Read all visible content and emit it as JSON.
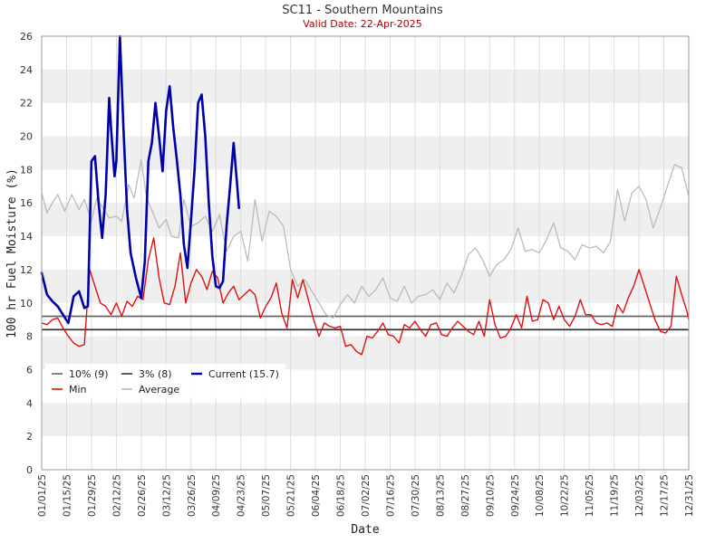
{
  "chart_data": {
    "type": "line",
    "title": "SC11 - Southern Mountains",
    "subtitle": "Valid Date: 22-Apr-2025",
    "xlabel": "Date",
    "ylabel": "100 hr Fuel Moisture (%)",
    "ylim": [
      0,
      26
    ],
    "yticks": [
      0,
      2,
      4,
      6,
      8,
      10,
      12,
      14,
      16,
      18,
      20,
      22,
      24,
      26
    ],
    "xlim": [
      "2025-01-01",
      "2025-12-31"
    ],
    "xtick_labels": [
      "01/01/25",
      "01/15/25",
      "01/29/25",
      "02/12/25",
      "02/26/25",
      "03/12/25",
      "03/26/25",
      "04/09/25",
      "04/23/25",
      "05/07/25",
      "05/21/25",
      "06/04/25",
      "06/18/25",
      "07/02/25",
      "07/16/25",
      "07/30/25",
      "08/13/25",
      "08/27/25",
      "09/10/25",
      "09/24/25",
      "10/08/25",
      "10/22/25",
      "11/05/25",
      "11/19/25",
      "12/03/25",
      "12/17/25",
      "12/31/25"
    ],
    "grid": true,
    "legend_position": "bottom-left",
    "colors": {
      "p10": "#666666",
      "p3": "#333333",
      "current": "#0000aa",
      "min": "#dd1111",
      "average": "#bbbbbb",
      "band": "#efefef",
      "grid": "#dddddd"
    },
    "thresholds": [
      {
        "name": "10% (9)",
        "value": 9.2
      },
      {
        "name": "3% (8)",
        "value": 8.4
      }
    ],
    "legend": [
      {
        "key": "p10",
        "label": "10% (9)"
      },
      {
        "key": "p3",
        "label": "3% (8)"
      },
      {
        "key": "current",
        "label": "Current (15.7)"
      },
      {
        "key": "min",
        "label": "Min"
      },
      {
        "key": "average",
        "label": "Average"
      }
    ],
    "series": [
      {
        "name": "Average",
        "key": "average",
        "x": [
          "2025-01-01",
          "2025-01-04",
          "2025-01-07",
          "2025-01-10",
          "2025-01-14",
          "2025-01-18",
          "2025-01-22",
          "2025-01-25",
          "2025-01-29",
          "2025-02-01",
          "2025-02-05",
          "2025-02-08",
          "2025-02-12",
          "2025-02-15",
          "2025-02-19",
          "2025-02-22",
          "2025-02-26",
          "2025-03-01",
          "2025-03-05",
          "2025-03-08",
          "2025-03-12",
          "2025-03-15",
          "2025-03-19",
          "2025-03-22",
          "2025-03-26",
          "2025-03-30",
          "2025-04-03",
          "2025-04-07",
          "2025-04-11",
          "2025-04-15",
          "2025-04-19",
          "2025-04-23",
          "2025-04-27",
          "2025-05-01",
          "2025-05-05",
          "2025-05-09",
          "2025-05-13",
          "2025-05-17",
          "2025-05-21",
          "2025-05-25",
          "2025-05-29",
          "2025-06-02",
          "2025-06-06",
          "2025-06-10",
          "2025-06-14",
          "2025-06-18",
          "2025-06-22",
          "2025-06-26",
          "2025-06-30",
          "2025-07-04",
          "2025-07-08",
          "2025-07-12",
          "2025-07-16",
          "2025-07-20",
          "2025-07-24",
          "2025-07-28",
          "2025-08-01",
          "2025-08-05",
          "2025-08-09",
          "2025-08-13",
          "2025-08-17",
          "2025-08-21",
          "2025-08-25",
          "2025-08-29",
          "2025-09-02",
          "2025-09-06",
          "2025-09-10",
          "2025-09-14",
          "2025-09-18",
          "2025-09-22",
          "2025-09-26",
          "2025-09-30",
          "2025-10-04",
          "2025-10-08",
          "2025-10-12",
          "2025-10-16",
          "2025-10-20",
          "2025-10-24",
          "2025-10-28",
          "2025-11-01",
          "2025-11-05",
          "2025-11-09",
          "2025-11-13",
          "2025-11-17",
          "2025-11-21",
          "2025-11-25",
          "2025-11-29",
          "2025-12-03",
          "2025-12-07",
          "2025-12-11",
          "2025-12-15",
          "2025-12-19",
          "2025-12-23",
          "2025-12-27",
          "2025-12-31"
        ],
        "y": [
          16.6,
          15.4,
          16.0,
          16.5,
          15.5,
          16.5,
          15.6,
          16.2,
          14.9,
          16.3,
          15.6,
          15.1,
          15.2,
          14.9,
          17.1,
          16.3,
          18.6,
          16.3,
          15.3,
          14.5,
          15.0,
          14.0,
          13.9,
          16.2,
          14.6,
          14.8,
          15.2,
          14.3,
          15.3,
          13.1,
          14.0,
          14.3,
          12.5,
          16.2,
          13.7,
          15.5,
          15.2,
          14.6,
          12.0,
          11.0,
          11.4,
          10.7,
          10.0,
          9.3,
          9.1,
          9.9,
          10.5,
          10.0,
          11.0,
          10.4,
          10.8,
          11.5,
          10.3,
          10.1,
          11.0,
          10.0,
          10.4,
          10.5,
          10.8,
          10.2,
          11.2,
          10.6,
          11.6,
          12.9,
          13.3,
          12.6,
          11.6,
          12.3,
          12.6,
          13.2,
          14.5,
          13.1,
          13.2,
          13.0,
          13.8,
          14.8,
          13.3,
          13.1,
          12.6,
          13.5,
          13.3,
          13.4,
          13.0,
          13.7,
          16.8,
          14.9,
          16.6,
          17.0,
          16.2,
          14.5,
          15.7,
          17.0,
          18.3,
          18.1,
          16.4
        ]
      },
      {
        "name": "Min",
        "key": "min",
        "x": [
          "2025-01-01",
          "2025-01-04",
          "2025-01-07",
          "2025-01-10",
          "2025-01-13",
          "2025-01-16",
          "2025-01-19",
          "2025-01-22",
          "2025-01-25",
          "2025-01-28",
          "2025-01-31",
          "2025-02-03",
          "2025-02-06",
          "2025-02-09",
          "2025-02-12",
          "2025-02-15",
          "2025-02-18",
          "2025-02-21",
          "2025-02-24",
          "2025-02-27",
          "2025-03-02",
          "2025-03-05",
          "2025-03-08",
          "2025-03-11",
          "2025-03-14",
          "2025-03-17",
          "2025-03-20",
          "2025-03-23",
          "2025-03-26",
          "2025-03-29",
          "2025-04-01",
          "2025-04-04",
          "2025-04-07",
          "2025-04-10",
          "2025-04-13",
          "2025-04-16",
          "2025-04-19",
          "2025-04-22",
          "2025-04-25",
          "2025-04-28",
          "2025-05-01",
          "2025-05-04",
          "2025-05-07",
          "2025-05-10",
          "2025-05-13",
          "2025-05-16",
          "2025-05-19",
          "2025-05-22",
          "2025-05-25",
          "2025-05-28",
          "2025-05-31",
          "2025-06-03",
          "2025-06-06",
          "2025-06-09",
          "2025-06-12",
          "2025-06-15",
          "2025-06-18",
          "2025-06-21",
          "2025-06-24",
          "2025-06-27",
          "2025-06-30",
          "2025-07-03",
          "2025-07-06",
          "2025-07-09",
          "2025-07-12",
          "2025-07-15",
          "2025-07-18",
          "2025-07-21",
          "2025-07-24",
          "2025-07-27",
          "2025-07-30",
          "2025-08-02",
          "2025-08-05",
          "2025-08-08",
          "2025-08-11",
          "2025-08-14",
          "2025-08-17",
          "2025-08-20",
          "2025-08-23",
          "2025-08-26",
          "2025-08-29",
          "2025-09-01",
          "2025-09-04",
          "2025-09-07",
          "2025-09-10",
          "2025-09-13",
          "2025-09-16",
          "2025-09-19",
          "2025-09-22",
          "2025-09-25",
          "2025-09-28",
          "2025-10-01",
          "2025-10-04",
          "2025-10-07",
          "2025-10-10",
          "2025-10-13",
          "2025-10-16",
          "2025-10-19",
          "2025-10-22",
          "2025-10-25",
          "2025-10-28",
          "2025-10-31",
          "2025-11-03",
          "2025-11-06",
          "2025-11-09",
          "2025-11-12",
          "2025-11-15",
          "2025-11-18",
          "2025-11-21",
          "2025-11-24",
          "2025-11-27",
          "2025-11-30",
          "2025-12-03",
          "2025-12-06",
          "2025-12-09",
          "2025-12-12",
          "2025-12-15",
          "2025-12-18",
          "2025-12-21",
          "2025-12-24",
          "2025-12-27",
          "2025-12-30",
          "2025-12-31"
        ],
        "y": [
          8.8,
          8.7,
          9.0,
          9.1,
          8.5,
          8.0,
          7.6,
          7.4,
          7.5,
          12.0,
          11.0,
          10.0,
          9.8,
          9.3,
          10.0,
          9.2,
          10.1,
          9.8,
          10.4,
          10.2,
          12.6,
          13.9,
          11.5,
          10.0,
          9.9,
          11.0,
          13.0,
          10.0,
          11.2,
          12.0,
          11.6,
          10.8,
          11.9,
          11.5,
          10.0,
          10.6,
          11.0,
          10.2,
          10.5,
          10.8,
          10.5,
          9.1,
          9.8,
          10.3,
          11.2,
          9.4,
          8.5,
          11.4,
          10.3,
          11.4,
          10.2,
          9.0,
          8.0,
          8.8,
          8.6,
          8.5,
          8.6,
          7.4,
          7.5,
          7.1,
          6.9,
          8.0,
          7.9,
          8.3,
          8.8,
          8.1,
          8.0,
          7.6,
          8.7,
          8.5,
          8.9,
          8.4,
          8.0,
          8.7,
          8.8,
          8.1,
          8.0,
          8.5,
          8.9,
          8.6,
          8.3,
          8.1,
          8.9,
          8.0,
          10.2,
          8.7,
          7.9,
          8.0,
          8.5,
          9.3,
          8.5,
          10.4,
          8.9,
          9.0,
          10.2,
          10.0,
          9.0,
          9.8,
          9.0,
          8.6,
          9.2,
          10.2,
          9.3,
          9.3,
          8.8,
          8.7,
          8.8,
          8.6,
          9.9,
          9.4,
          10.3,
          11.0,
          12.0,
          11.0,
          10.0,
          9.0,
          8.3,
          8.2,
          8.6,
          11.6,
          10.5,
          9.5,
          9.0
        ]
      },
      {
        "name": "Current (15.7)",
        "key": "current",
        "x": [
          "2025-01-01",
          "2025-01-04",
          "2025-01-07",
          "2025-01-10",
          "2025-01-13",
          "2025-01-16",
          "2025-01-19",
          "2025-01-22",
          "2025-01-25",
          "2025-01-27",
          "2025-01-29",
          "2025-01-31",
          "2025-02-02",
          "2025-02-04",
          "2025-02-06",
          "2025-02-08",
          "2025-02-09",
          "2025-02-11",
          "2025-02-12",
          "2025-02-14",
          "2025-02-16",
          "2025-02-18",
          "2025-02-20",
          "2025-02-23",
          "2025-02-26",
          "2025-02-28",
          "2025-03-02",
          "2025-03-04",
          "2025-03-06",
          "2025-03-08",
          "2025-03-10",
          "2025-03-12",
          "2025-03-14",
          "2025-03-16",
          "2025-03-18",
          "2025-03-20",
          "2025-03-22",
          "2025-03-24",
          "2025-03-26",
          "2025-03-28",
          "2025-03-30",
          "2025-04-01",
          "2025-04-03",
          "2025-04-05",
          "2025-04-07",
          "2025-04-09",
          "2025-04-11",
          "2025-04-13",
          "2025-04-15",
          "2025-04-17",
          "2025-04-19",
          "2025-04-21",
          "2025-04-22"
        ],
        "y": [
          11.8,
          10.5,
          10.1,
          9.8,
          9.3,
          8.8,
          10.4,
          10.7,
          9.7,
          9.8,
          18.5,
          18.8,
          16.0,
          13.9,
          16.5,
          22.3,
          20.5,
          17.6,
          18.5,
          26.0,
          20.5,
          15.6,
          13.0,
          11.5,
          10.3,
          12.5,
          18.5,
          19.6,
          22.0,
          20.0,
          17.9,
          21.5,
          23.0,
          20.5,
          18.6,
          16.5,
          13.5,
          12.1,
          15.0,
          18.0,
          22.0,
          22.5,
          20.0,
          16.0,
          12.8,
          11.0,
          10.9,
          11.3,
          14.6,
          17.0,
          19.6,
          17.0,
          15.7
        ]
      }
    ]
  }
}
